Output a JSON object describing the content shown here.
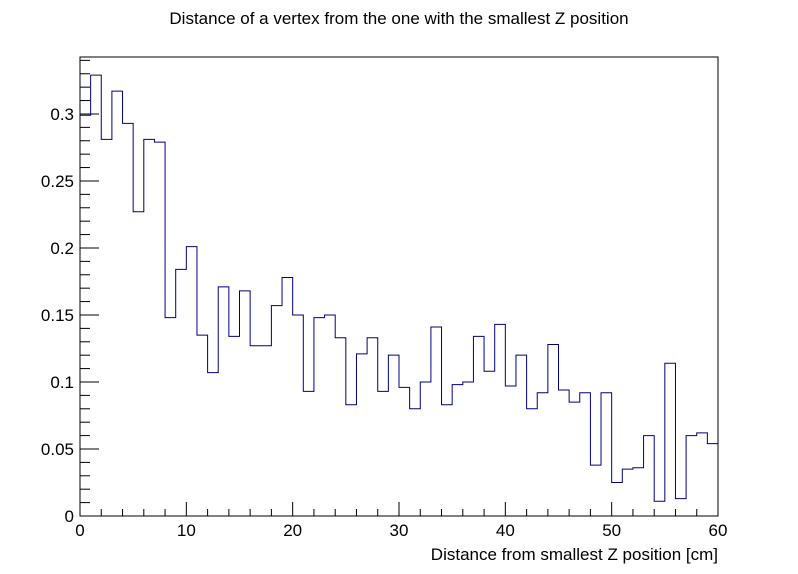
{
  "chart_data": {
    "type": "step",
    "title": "Distance of a vertex from the one with the smallest Z position",
    "xlabel": "Distance from smallest Z position [cm]",
    "ylabel": "",
    "xlim": [
      0,
      60
    ],
    "ylim": [
      0,
      0.3425
    ],
    "bin_width": 1,
    "x_major_ticks": [
      0,
      10,
      20,
      30,
      40,
      50,
      60
    ],
    "x_tick_labels": [
      "0",
      "10",
      "20",
      "30",
      "40",
      "50",
      "60"
    ],
    "y_major_ticks": [
      0,
      0.05,
      0.1,
      0.15,
      0.2,
      0.25,
      0.3
    ],
    "y_tick_labels": [
      "0",
      "0.05",
      "0.1",
      "0.15",
      "0.2",
      "0.25",
      "0.3"
    ],
    "grid": false,
    "line_color": "#000080",
    "values": [
      0.299,
      0.329,
      0.281,
      0.317,
      0.293,
      0.227,
      0.281,
      0.279,
      0.148,
      0.184,
      0.201,
      0.135,
      0.107,
      0.171,
      0.134,
      0.168,
      0.127,
      0.127,
      0.157,
      0.178,
      0.15,
      0.093,
      0.148,
      0.15,
      0.133,
      0.083,
      0.121,
      0.133,
      0.093,
      0.12,
      0.096,
      0.08,
      0.1,
      0.141,
      0.083,
      0.098,
      0.1,
      0.134,
      0.108,
      0.143,
      0.097,
      0.12,
      0.08,
      0.092,
      0.128,
      0.094,
      0.085,
      0.092,
      0.038,
      0.092,
      0.025,
      0.035,
      0.036,
      0.06,
      0.011,
      0.114,
      0.013,
      0.06,
      0.062,
      0.054
    ]
  }
}
